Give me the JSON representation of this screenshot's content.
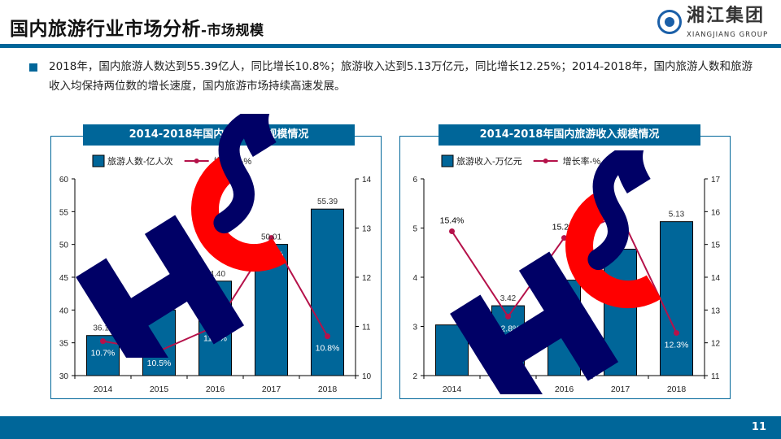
{
  "header": {
    "title_main": "国内旅游行业市场分析",
    "title_sub": "-市场规模",
    "logo_cn": "湘江集团",
    "logo_en": "XIANGJIANG GROUP",
    "logo_icon": "company-logo-icon"
  },
  "summary": {
    "text": "2018年，国内旅游人数达到55.39亿人，同比增长10.8%；旅游收入达到5.13万亿元，同比增长12.25%；2014-2018年，国内旅游人数和旅游收入均保持两位数的增长速度，国内旅游市场持续高速发展。"
  },
  "watermark": {
    "text": "HSC"
  },
  "colors": {
    "brand": "#006699",
    "bar": "#006699",
    "line": "#b5124a",
    "watermark_navy": "#000066",
    "watermark_red": "#ff0000"
  },
  "footer": {
    "page_number": "11"
  },
  "chart_data": [
    {
      "type": "bar",
      "title": "2014-2018年国内旅游人数规模情况",
      "categories": [
        "2014",
        "2015",
        "2016",
        "2017",
        "2018"
      ],
      "series": [
        {
          "name": "旅游人数-亿人次",
          "kind": "bar",
          "axis": "left",
          "values": [
            36.11,
            40.0,
            44.4,
            50.01,
            55.39
          ],
          "labels": [
            "36.11",
            "40.00",
            "44.40",
            "50.01",
            "55.39"
          ]
        },
        {
          "name": "增长率-%",
          "kind": "line",
          "axis": "right",
          "values": [
            10.7,
            10.5,
            11.0,
            12.8,
            10.8
          ],
          "labels": [
            "10.7%",
            "10.5%",
            "11.0%",
            "12.8%",
            "10.8%"
          ]
        }
      ],
      "left_axis": {
        "min": 30,
        "max": 60,
        "ticks": [
          "30",
          "35",
          "40",
          "45",
          "50",
          "55",
          "60"
        ]
      },
      "right_axis": {
        "min": 10,
        "max": 14,
        "ticks": [
          "10",
          "11",
          "12",
          "13",
          "14"
        ]
      },
      "legend": "top",
      "grid": false
    },
    {
      "type": "bar",
      "title": "2014-2018年国内旅游收入规模情况",
      "categories": [
        "2014",
        "2015",
        "2016",
        "2017",
        "2018"
      ],
      "series": [
        {
          "name": "旅游收入-万亿元",
          "kind": "bar",
          "axis": "left",
          "values": [
            3.03,
            3.42,
            3.94,
            4.57,
            5.13
          ],
          "labels": [
            "",
            "3.42",
            "",
            "4.57",
            "5.13"
          ]
        },
        {
          "name": "增长率-%",
          "kind": "line",
          "axis": "right",
          "values": [
            15.4,
            12.8,
            15.2,
            15.9,
            12.3
          ],
          "labels": [
            "15.4%",
            "12.8%",
            "15.2%",
            "",
            "12.3%"
          ]
        }
      ],
      "left_axis": {
        "min": 2,
        "max": 6,
        "ticks": [
          "2",
          "3",
          "4",
          "5",
          "6"
        ]
      },
      "right_axis": {
        "min": 11,
        "max": 17,
        "ticks": [
          "11",
          "12",
          "13",
          "14",
          "15",
          "16",
          "17"
        ]
      },
      "legend": "top",
      "grid": false
    }
  ]
}
